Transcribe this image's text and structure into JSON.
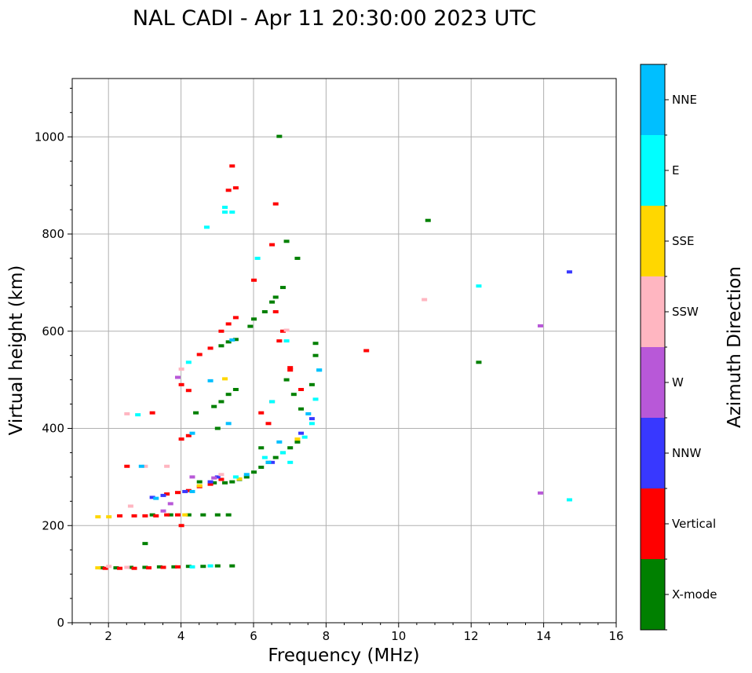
{
  "chart_data": {
    "type": "scatter",
    "title": "NAL CADI - Apr 11 20:30:00 2023 UTC",
    "xlabel": "Frequency (MHz)",
    "ylabel": "Virtual height (km)",
    "colorbar_label": "Azimuth Direction",
    "xlim": [
      1,
      16
    ],
    "ylim": [
      0,
      1120
    ],
    "xticks": [
      2,
      4,
      6,
      8,
      10,
      12,
      14,
      16
    ],
    "xtick_labels": [
      "2",
      "4",
      "6",
      "8",
      "10",
      "12",
      "14",
      "16"
    ],
    "yticks": [
      0,
      200,
      400,
      600,
      800,
      1000
    ],
    "ytick_labels": [
      "0",
      "200",
      "400",
      "600",
      "800",
      "1000"
    ],
    "grid": true,
    "categories": [
      "X-mode",
      "Vertical",
      "NNW",
      "W",
      "SSW",
      "SSE",
      "E",
      "NNE"
    ],
    "category_colors": [
      "#008000",
      "#ff0000",
      "#3838ff",
      "#b858d8",
      "#ffb6c1",
      "#ffd700",
      "#00ffff",
      "#00bfff"
    ],
    "series": [
      {
        "name": "X-mode",
        "points": [
          [
            1.8,
            113
          ],
          [
            2.2,
            113
          ],
          [
            2.6,
            114
          ],
          [
            3.0,
            114
          ],
          [
            3.4,
            115
          ],
          [
            3.8,
            115
          ],
          [
            4.2,
            116
          ],
          [
            4.6,
            116
          ],
          [
            5.0,
            117
          ],
          [
            5.4,
            117
          ],
          [
            3.2,
            222
          ],
          [
            3.7,
            222
          ],
          [
            4.2,
            222
          ],
          [
            4.6,
            222
          ],
          [
            5.0,
            222
          ],
          [
            5.3,
            222
          ],
          [
            4.5,
            290
          ],
          [
            4.9,
            288
          ],
          [
            5.2,
            288
          ],
          [
            5.4,
            290
          ],
          [
            5.6,
            295
          ],
          [
            5.8,
            300
          ],
          [
            6.0,
            310
          ],
          [
            6.2,
            320
          ],
          [
            6.4,
            330
          ],
          [
            6.6,
            340
          ],
          [
            6.8,
            350
          ],
          [
            7.0,
            360
          ],
          [
            7.2,
            372
          ],
          [
            4.4,
            432
          ],
          [
            4.9,
            445
          ],
          [
            5.1,
            455
          ],
          [
            5.3,
            470
          ],
          [
            5.5,
            480
          ],
          [
            5.1,
            570
          ],
          [
            5.3,
            578
          ],
          [
            5.5,
            583
          ],
          [
            5.9,
            610
          ],
          [
            6.0,
            625
          ],
          [
            6.3,
            640
          ],
          [
            6.5,
            660
          ],
          [
            6.6,
            670
          ],
          [
            6.8,
            690
          ],
          [
            6.9,
            500
          ],
          [
            7.1,
            470
          ],
          [
            7.3,
            440
          ],
          [
            7.6,
            490
          ],
          [
            7.7,
            550
          ],
          [
            7.7,
            575
          ],
          [
            6.7,
            1001
          ],
          [
            10.8,
            828
          ],
          [
            12.2,
            536
          ],
          [
            6.9,
            785
          ],
          [
            7.2,
            750
          ],
          [
            3.0,
            163
          ],
          [
            5.0,
            400
          ],
          [
            6.2,
            360
          ]
        ]
      },
      {
        "name": "Vertical",
        "points": [
          [
            1.9,
            112
          ],
          [
            2.3,
            112
          ],
          [
            2.7,
            112
          ],
          [
            3.1,
            113
          ],
          [
            3.5,
            114
          ],
          [
            3.9,
            115
          ],
          [
            2.3,
            220
          ],
          [
            2.7,
            220
          ],
          [
            3.0,
            220
          ],
          [
            3.3,
            220
          ],
          [
            3.6,
            222
          ],
          [
            3.9,
            222
          ],
          [
            3.6,
            265
          ],
          [
            3.9,
            268
          ],
          [
            4.2,
            272
          ],
          [
            4.5,
            280
          ],
          [
            4.8,
            285
          ],
          [
            5.1,
            295
          ],
          [
            4.0,
            378
          ],
          [
            4.2,
            385
          ],
          [
            4.0,
            490
          ],
          [
            4.2,
            478
          ],
          [
            4.5,
            552
          ],
          [
            4.8,
            565
          ],
          [
            5.1,
            600
          ],
          [
            5.3,
            615
          ],
          [
            5.5,
            628
          ],
          [
            5.3,
            890
          ],
          [
            5.4,
            940
          ],
          [
            5.5,
            895
          ],
          [
            6.6,
            862
          ],
          [
            6.5,
            778
          ],
          [
            6.0,
            705
          ],
          [
            6.6,
            640
          ],
          [
            6.7,
            580
          ],
          [
            6.5,
            455
          ],
          [
            6.4,
            410
          ],
          [
            6.2,
            432
          ],
          [
            6.8,
            600
          ],
          [
            7.0,
            520
          ],
          [
            7.3,
            480
          ],
          [
            7.0,
            525
          ],
          [
            9.1,
            560
          ],
          [
            2.5,
            322
          ],
          [
            3.2,
            432
          ],
          [
            4.0,
            200
          ]
        ]
      },
      {
        "name": "NNW",
        "points": [
          [
            3.2,
            258
          ],
          [
            3.5,
            262
          ],
          [
            4.1,
            270
          ],
          [
            4.8,
            290
          ],
          [
            5.0,
            300
          ],
          [
            6.5,
            330
          ],
          [
            7.3,
            390
          ],
          [
            7.6,
            420
          ],
          [
            14.7,
            722
          ]
        ]
      },
      {
        "name": "W",
        "points": [
          [
            3.5,
            230
          ],
          [
            3.7,
            245
          ],
          [
            4.3,
            300
          ],
          [
            4.9,
            298
          ],
          [
            3.9,
            505
          ],
          [
            13.9,
            611
          ],
          [
            13.9,
            267
          ]
        ]
      },
      {
        "name": "SSW",
        "points": [
          [
            2.0,
            116
          ],
          [
            2.5,
            114
          ],
          [
            2.5,
            430
          ],
          [
            2.6,
            240
          ],
          [
            3.0,
            322
          ],
          [
            3.6,
            322
          ],
          [
            4.0,
            522
          ],
          [
            5.1,
            305
          ],
          [
            10.7,
            665
          ],
          [
            6.9,
            602
          ]
        ]
      },
      {
        "name": "SSE",
        "points": [
          [
            1.7,
            113
          ],
          [
            1.7,
            218
          ],
          [
            2.0,
            218
          ],
          [
            4.1,
            222
          ],
          [
            4.5,
            282
          ],
          [
            5.2,
            502
          ],
          [
            5.6,
            296
          ],
          [
            7.2,
            378
          ]
        ]
      },
      {
        "name": "E",
        "points": [
          [
            4.3,
            115
          ],
          [
            4.8,
            117
          ],
          [
            5.5,
            300
          ],
          [
            6.3,
            340
          ],
          [
            6.8,
            350
          ],
          [
            7.0,
            330
          ],
          [
            7.4,
            382
          ],
          [
            7.6,
            410
          ],
          [
            7.7,
            460
          ],
          [
            7.8,
            520
          ],
          [
            5.2,
            855
          ],
          [
            5.2,
            845
          ],
          [
            5.4,
            845
          ],
          [
            4.7,
            814
          ],
          [
            6.1,
            750
          ],
          [
            6.9,
            580
          ],
          [
            12.2,
            693
          ],
          [
            14.7,
            253
          ],
          [
            2.8,
            428
          ],
          [
            4.2,
            536
          ],
          [
            6.5,
            455
          ]
        ]
      },
      {
        "name": "NNE",
        "points": [
          [
            3.3,
            256
          ],
          [
            4.3,
            270
          ],
          [
            4.8,
            498
          ],
          [
            5.3,
            410
          ],
          [
            5.4,
            582
          ],
          [
            6.4,
            330
          ],
          [
            6.7,
            372
          ],
          [
            7.5,
            430
          ],
          [
            7.8,
            520
          ],
          [
            5.8,
            305
          ],
          [
            2.9,
            322
          ],
          [
            4.3,
            390
          ]
        ]
      }
    ]
  }
}
